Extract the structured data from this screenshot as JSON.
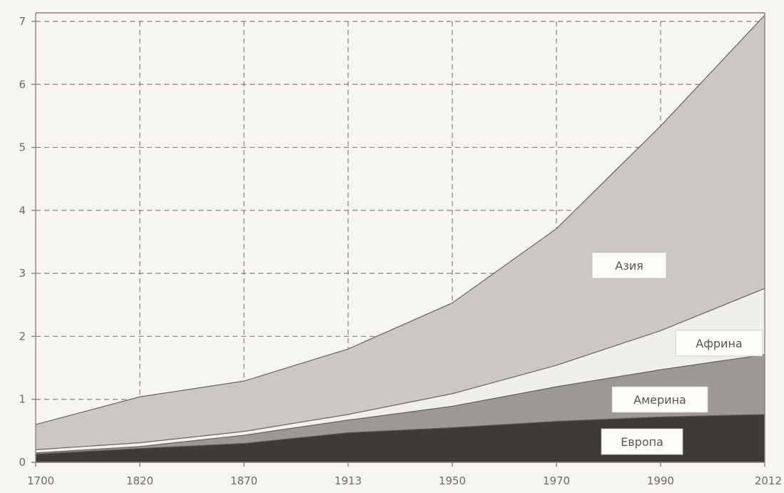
{
  "chart_data": {
    "type": "area",
    "stacked": true,
    "title": "",
    "xlabel": "",
    "ylabel": "",
    "categories": [
      "1700",
      "1820",
      "1870",
      "1913",
      "1950",
      "1970",
      "1990",
      "2012"
    ],
    "ylim": [
      0,
      7
    ],
    "yticks": [
      "0",
      "1",
      "2",
      "3",
      "4",
      "5",
      "6",
      "7"
    ],
    "grid": true,
    "series": [
      {
        "name": "Европа",
        "values": [
          0.13,
          0.22,
          0.3,
          0.47,
          0.55,
          0.65,
          0.72,
          0.76
        ],
        "color": "#3e3a38"
      },
      {
        "name": "Америна",
        "values": [
          0.02,
          0.03,
          0.13,
          0.2,
          0.34,
          0.55,
          0.75,
          0.95
        ],
        "color": "#9c9894"
      },
      {
        "name": "Африна",
        "values": [
          0.05,
          0.06,
          0.06,
          0.09,
          0.2,
          0.34,
          0.62,
          1.05
        ],
        "color": "#f1efe9"
      },
      {
        "name": "Азия",
        "values": [
          0.4,
          0.73,
          0.8,
          1.04,
          1.44,
          2.17,
          3.25,
          4.34
        ],
        "color": "#cbc8c3"
      }
    ]
  }
}
